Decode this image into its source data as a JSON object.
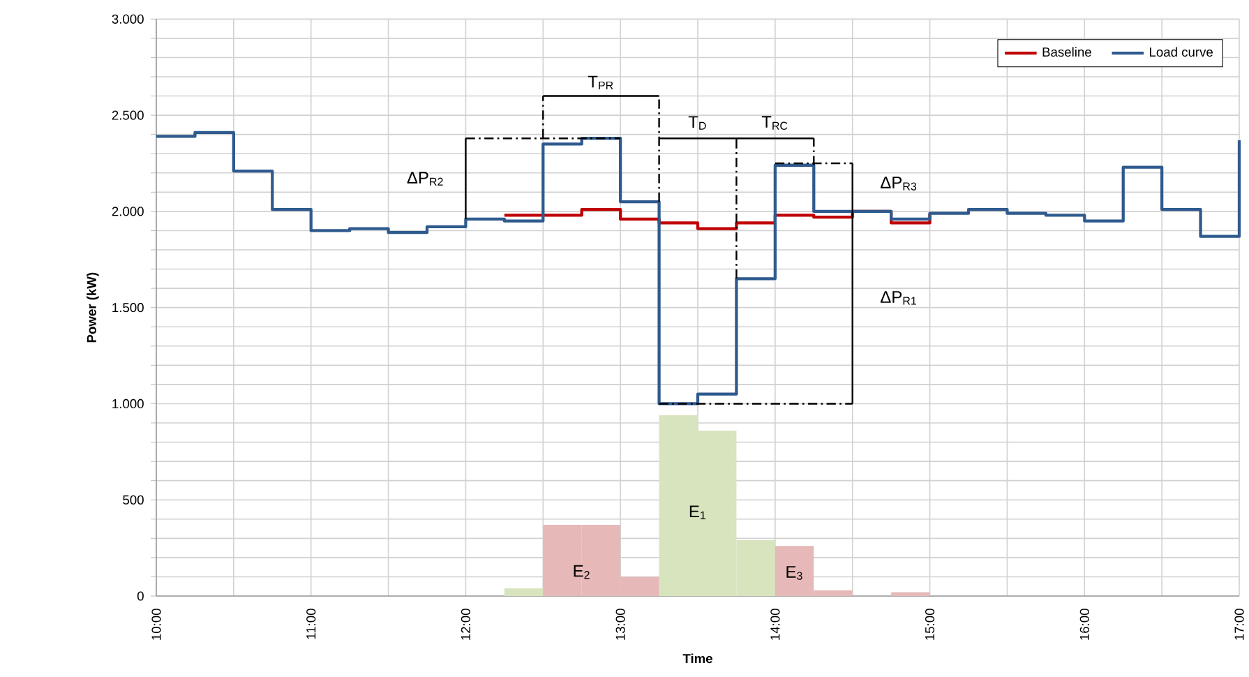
{
  "chart_data": {
    "type": "step",
    "xlabel": "Time",
    "ylabel": "Power (kW)",
    "x": [
      10,
      10.25,
      10.5,
      10.75,
      11,
      11.25,
      11.5,
      11.75,
      12,
      12.25,
      12.5,
      12.75,
      13,
      13.25,
      13.5,
      13.75,
      14,
      14.25,
      14.5,
      14.75,
      15,
      15.25,
      15.5,
      15.75,
      16,
      16.25,
      16.5,
      16.75,
      17
    ],
    "xlim": [
      10,
      17
    ],
    "xticks": [
      {
        "value": 10,
        "label": "10:00"
      },
      {
        "value": 10.5,
        "label": null
      },
      {
        "value": 11,
        "label": "11:00"
      },
      {
        "value": 11.5,
        "label": null
      },
      {
        "value": 12,
        "label": "12:00"
      },
      {
        "value": 12.5,
        "label": null
      },
      {
        "value": 13,
        "label": "13:00"
      },
      {
        "value": 13.5,
        "label": null
      },
      {
        "value": 14,
        "label": "14:00"
      },
      {
        "value": 14.5,
        "label": null
      },
      {
        "value": 15,
        "label": "15:00"
      },
      {
        "value": 15.5,
        "label": null
      },
      {
        "value": 16,
        "label": "16:00"
      },
      {
        "value": 16.5,
        "label": null
      },
      {
        "value": 17,
        "label": "17:00"
      }
    ],
    "ylim": [
      0,
      3000
    ],
    "yticks": [
      0,
      {
        "value": 100,
        "label": null
      },
      {
        "value": 200,
        "label": null
      },
      {
        "value": 300,
        "label": null
      },
      {
        "value": 400,
        "label": null
      },
      500,
      {
        "value": 600,
        "label": null
      },
      {
        "value": 700,
        "label": null
      },
      {
        "value": 800,
        "label": null
      },
      {
        "value": 900,
        "label": null
      },
      {
        "value": 1000,
        "label": "1.000"
      },
      {
        "value": 1100,
        "label": null
      },
      {
        "value": 1200,
        "label": null
      },
      {
        "value": 1300,
        "label": null
      },
      {
        "value": 1400,
        "label": null
      },
      {
        "value": 1500,
        "label": "1.500"
      },
      {
        "value": 1600,
        "label": null
      },
      {
        "value": 1700,
        "label": null
      },
      {
        "value": 1800,
        "label": null
      },
      {
        "value": 1900,
        "label": null
      },
      {
        "value": 2000,
        "label": "2.000"
      },
      {
        "value": 2100,
        "label": null
      },
      {
        "value": 2200,
        "label": null
      },
      {
        "value": 2300,
        "label": null
      },
      {
        "value": 2400,
        "label": null
      },
      {
        "value": 2500,
        "label": "2.500"
      },
      {
        "value": 2600,
        "label": null
      },
      {
        "value": 2700,
        "label": null
      },
      {
        "value": 2800,
        "label": null
      },
      {
        "value": 2900,
        "label": null
      },
      {
        "value": 3000,
        "label": "3.000"
      }
    ],
    "grid": true,
    "legend": "top right",
    "series": [
      {
        "type": "bar",
        "color": "#d7e4bd",
        "x": [
          12.375,
          13.375,
          13.625,
          13.875
        ],
        "values": [
          40,
          940,
          860,
          290
        ]
      },
      {
        "type": "bar",
        "color": "#e6b9b8",
        "x": [
          12.625,
          12.875,
          13.125,
          14.125,
          14.375,
          14.875
        ],
        "values": [
          370,
          370,
          100,
          260,
          30,
          20
        ]
      },
      {
        "name": "Baseline",
        "color": "#c00000",
        "values": [
          null,
          null,
          null,
          null,
          null,
          null,
          null,
          null,
          null,
          1980,
          1980,
          2010,
          1960,
          1940,
          1910,
          1940,
          1980,
          1970,
          2000,
          1940,
          1990,
          null,
          null,
          null,
          null,
          null,
          null,
          null,
          null
        ]
      },
      {
        "name": "Load curve",
        "color": "#2e5a8e",
        "values": [
          2390,
          2410,
          2210,
          2010,
          1900,
          1910,
          1890,
          1920,
          1960,
          1950,
          2350,
          2380,
          2050,
          1000,
          1050,
          1650,
          2240,
          2000,
          2000,
          1960,
          1990,
          2010,
          1990,
          1980,
          1950,
          2230,
          2010,
          1870,
          2370
        ]
      },
      {
        "type": "line",
        "color": "#000000",
        "line_style": "dashed",
        "x": [
          12,
          13
        ],
        "values": [
          2380,
          2380
        ]
      },
      {
        "type": "line",
        "color": "#000000",
        "line_style": "dashed",
        "x": [
          12.5,
          12.5
        ],
        "values": [
          2380,
          2600
        ]
      },
      {
        "type": "line",
        "color": "#000000",
        "line_style": "dashed",
        "x": [
          13.25,
          13.25
        ],
        "values": [
          2050,
          2600
        ]
      },
      {
        "type": "line",
        "color": "#000000",
        "line_style": "dashed",
        "x": [
          13.75,
          13.75
        ],
        "values": [
          1650,
          2380
        ]
      },
      {
        "type": "line",
        "color": "#000000",
        "line_style": "dashed",
        "x": [
          14.25,
          14.25
        ],
        "values": [
          2240,
          2380
        ]
      },
      {
        "type": "line",
        "color": "#000000",
        "line_style": "dashed",
        "x": [
          14,
          14.5
        ],
        "values": [
          2250,
          2250
        ]
      },
      {
        "type": "line",
        "color": "#000000",
        "line_style": "dashed",
        "x": [
          13.25,
          14.5
        ],
        "values": [
          1000,
          1000
        ]
      },
      {
        "type": "line",
        "color": "#000000",
        "line_style": "solid",
        "x": [
          12,
          12
        ],
        "values": [
          1960,
          2380
        ]
      },
      {
        "type": "line",
        "color": "#000000",
        "line_style": "solid",
        "x": [
          12.5,
          13.25
        ],
        "values": [
          2600,
          2600
        ]
      },
      {
        "type": "line",
        "color": "#000000",
        "line_style": "solid",
        "x": [
          13.25,
          13.75,
          14.25
        ],
        "values": [
          2380,
          2380,
          2380
        ]
      },
      {
        "type": "line",
        "color": "#000000",
        "line_style": "solid",
        "x": [
          14.5,
          14.5,
          14.5
        ],
        "values": [
          1000,
          2000,
          2250
        ]
      }
    ],
    "annotations": [
      "T$_{PR}$",
      "T$_{D}$",
      "T$_{RC}$",
      "ΔP$_{R2}$",
      "ΔP$_{R3}$",
      "ΔP$_{R1}$",
      {
        "text": "E$_{1}$",
        "x": 13.5,
        "y": 435
      },
      {
        "text": "E$_{2}$",
        "x": 12.75,
        "y": 125
      },
      "E$_{3}$"
    ]
  }
}
